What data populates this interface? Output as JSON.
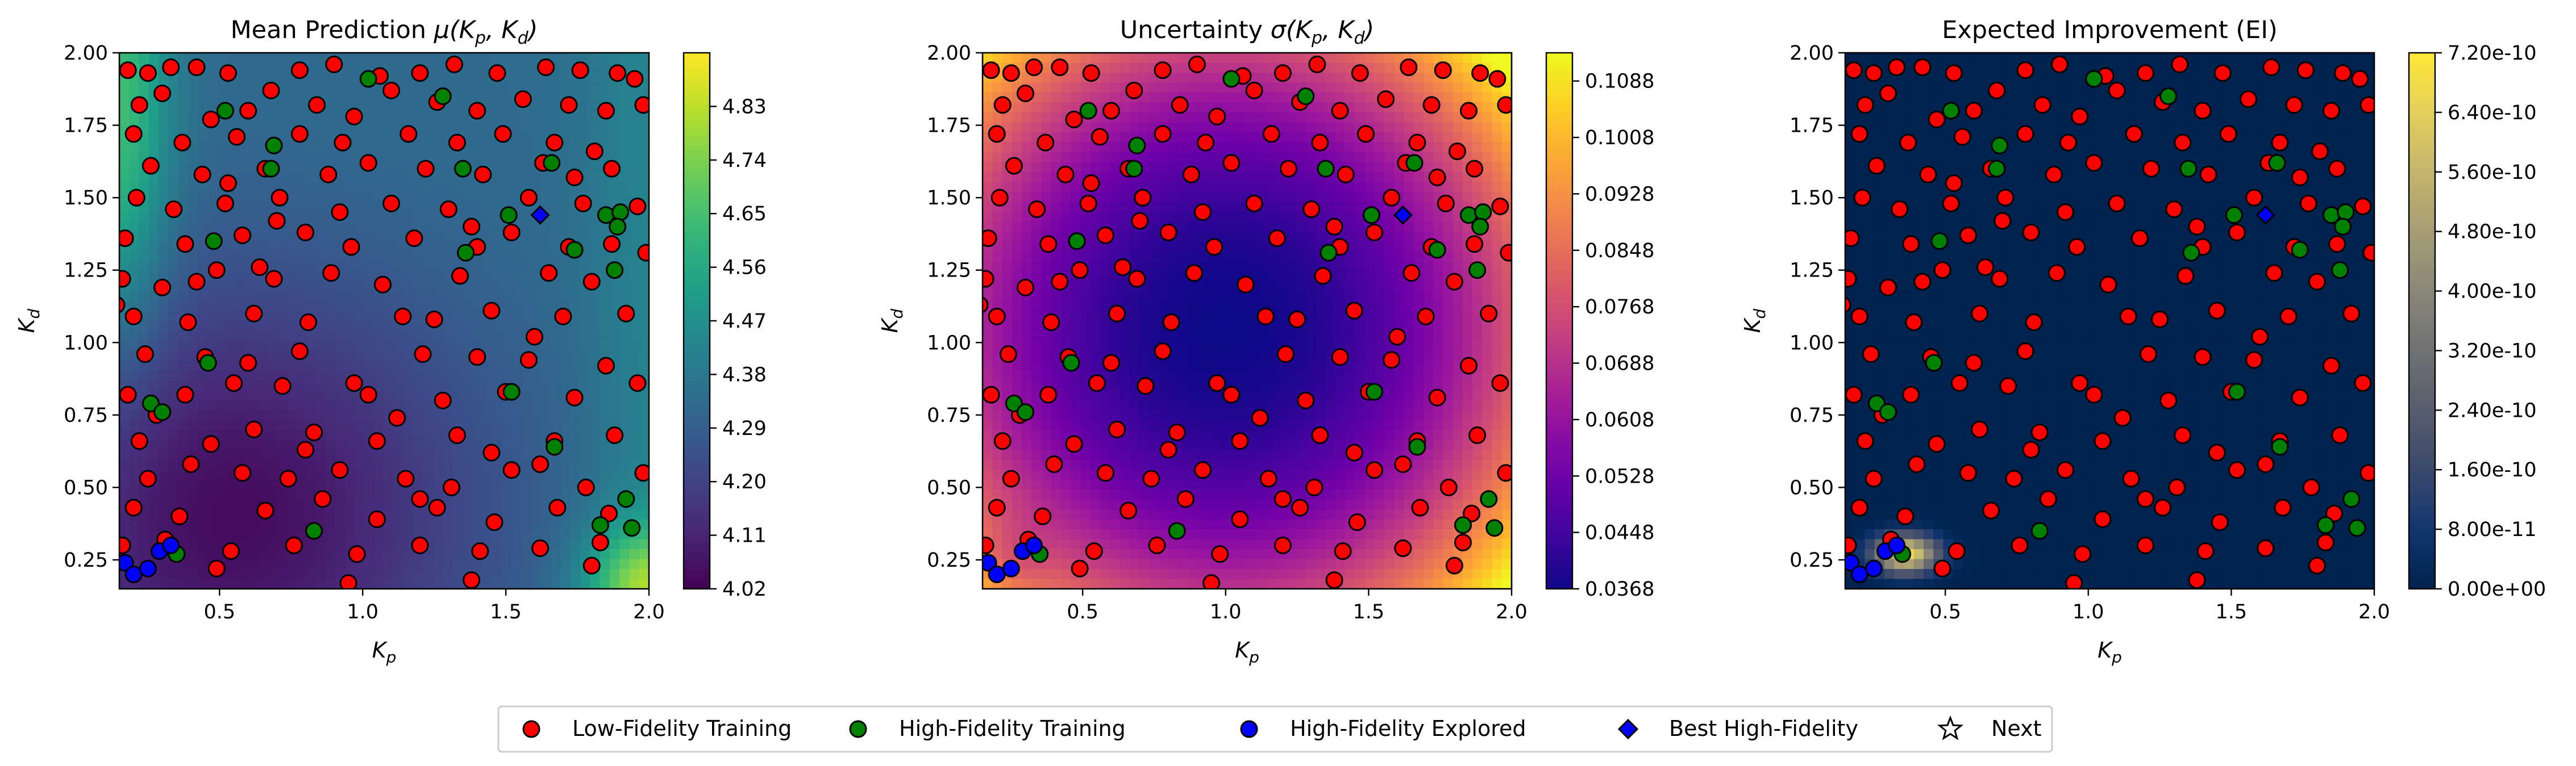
{
  "chart_data": [
    {
      "type": "heatmap",
      "title": "Mean Prediction μ(K_p, K_d)",
      "title_prefix": "Mean Prediction ",
      "title_math": [
        "μ(K",
        "p",
        ", K",
        "d",
        ")"
      ],
      "xlabel": "K_p",
      "ylabel": "K_d",
      "xlim": [
        0.15,
        2.0
      ],
      "ylim": [
        0.15,
        2.0
      ],
      "x_ticks": [
        "0.5",
        "1.0",
        "1.5",
        "2.0"
      ],
      "y_ticks": [
        "0.25",
        "0.50",
        "0.75",
        "1.00",
        "1.25",
        "1.50",
        "1.75",
        "2.00"
      ],
      "colormap": "viridis",
      "colorbar_range": [
        4.02,
        4.92
      ],
      "colorbar_ticks": [
        "4.02",
        "4.11",
        "4.20",
        "4.29",
        "4.38",
        "4.47",
        "4.56",
        "4.65",
        "4.74",
        "4.83"
      ],
      "minimum_region": [
        0.55,
        0.4
      ]
    },
    {
      "type": "heatmap",
      "title": "Uncertainty σ(K_p, K_d)",
      "title_prefix": "Uncertainty ",
      "title_math": [
        "σ(K",
        "p",
        ", K",
        "d",
        ")"
      ],
      "xlabel": "K_p",
      "ylabel": "K_d",
      "xlim": [
        0.15,
        2.0
      ],
      "ylim": [
        0.15,
        2.0
      ],
      "x_ticks": [
        "0.5",
        "1.0",
        "1.5",
        "2.0"
      ],
      "y_ticks": [
        "0.25",
        "0.50",
        "0.75",
        "1.00",
        "1.25",
        "1.50",
        "1.75",
        "2.00"
      ],
      "colormap": "plasma",
      "colorbar_range": [
        0.0368,
        0.1128
      ],
      "colorbar_ticks": [
        "0.0368",
        "0.0448",
        "0.0528",
        "0.0608",
        "0.0688",
        "0.0768",
        "0.0848",
        "0.0928",
        "0.1008",
        "0.1088"
      ]
    },
    {
      "type": "heatmap",
      "title": "Expected Improvement (EI)",
      "title_prefix": "Expected Improvement (EI)",
      "title_math": [],
      "xlabel": "K_p",
      "ylabel": "K_d",
      "xlim": [
        0.15,
        2.0
      ],
      "ylim": [
        0.15,
        2.0
      ],
      "x_ticks": [
        "0.5",
        "1.0",
        "1.5",
        "2.0"
      ],
      "y_ticks": [
        "0.25",
        "0.50",
        "0.75",
        "1.00",
        "1.25",
        "1.50",
        "1.75",
        "2.00"
      ],
      "colormap": "cividis",
      "colorbar_range": [
        0,
        7.2e-10
      ],
      "colorbar_ticks": [
        "0.00e+00",
        "8.00e-11",
        "1.60e-10",
        "2.40e-10",
        "3.20e-10",
        "4.00e-10",
        "4.80e-10",
        "5.60e-10",
        "6.40e-10",
        "7.20e-10"
      ],
      "peak_region": [
        0.35,
        0.27
      ]
    }
  ],
  "series": [
    {
      "key": "low",
      "label": "Low-Fidelity Training",
      "marker": "circle",
      "color": "#ff0000",
      "points": [
        [
          0.18,
          1.94
        ],
        [
          0.25,
          1.93
        ],
        [
          0.33,
          1.95
        ],
        [
          0.42,
          1.95
        ],
        [
          0.53,
          1.93
        ],
        [
          0.78,
          1.94
        ],
        [
          0.9,
          1.96
        ],
        [
          1.06,
          1.92
        ],
        [
          1.2,
          1.93
        ],
        [
          1.32,
          1.96
        ],
        [
          1.47,
          1.93
        ],
        [
          1.64,
          1.95
        ],
        [
          1.76,
          1.94
        ],
        [
          1.89,
          1.93
        ],
        [
          1.95,
          1.91
        ],
        [
          0.22,
          1.82
        ],
        [
          0.3,
          1.86
        ],
        [
          0.47,
          1.77
        ],
        [
          0.6,
          1.8
        ],
        [
          0.68,
          1.87
        ],
        [
          0.84,
          1.82
        ],
        [
          0.97,
          1.78
        ],
        [
          1.1,
          1.87
        ],
        [
          1.26,
          1.83
        ],
        [
          1.4,
          1.8
        ],
        [
          1.56,
          1.84
        ],
        [
          1.72,
          1.82
        ],
        [
          1.85,
          1.8
        ],
        [
          1.98,
          1.82
        ],
        [
          0.2,
          1.72
        ],
        [
          0.37,
          1.69
        ],
        [
          0.56,
          1.71
        ],
        [
          0.78,
          1.72
        ],
        [
          0.93,
          1.69
        ],
        [
          1.16,
          1.72
        ],
        [
          1.33,
          1.69
        ],
        [
          1.49,
          1.72
        ],
        [
          1.67,
          1.69
        ],
        [
          1.81,
          1.66
        ],
        [
          0.26,
          1.61
        ],
        [
          0.44,
          1.58
        ],
        [
          0.66,
          1.6
        ],
        [
          0.88,
          1.58
        ],
        [
          1.02,
          1.62
        ],
        [
          1.22,
          1.6
        ],
        [
          1.42,
          1.58
        ],
        [
          1.63,
          1.62
        ],
        [
          1.74,
          1.57
        ],
        [
          0.21,
          1.5
        ],
        [
          0.34,
          1.46
        ],
        [
          0.52,
          1.48
        ],
        [
          0.71,
          1.5
        ],
        [
          0.92,
          1.45
        ],
        [
          1.1,
          1.48
        ],
        [
          1.3,
          1.46
        ],
        [
          1.58,
          1.5
        ],
        [
          1.77,
          1.48
        ],
        [
          1.96,
          1.47
        ],
        [
          0.17,
          1.36
        ],
        [
          0.38,
          1.34
        ],
        [
          0.58,
          1.37
        ],
        [
          0.8,
          1.38
        ],
        [
          0.96,
          1.33
        ],
        [
          1.18,
          1.36
        ],
        [
          1.4,
          1.33
        ],
        [
          1.52,
          1.38
        ],
        [
          1.87,
          1.34
        ],
        [
          1.99,
          1.31
        ],
        [
          0.16,
          1.22
        ],
        [
          0.3,
          1.19
        ],
        [
          0.49,
          1.25
        ],
        [
          0.69,
          1.22
        ],
        [
          0.89,
          1.24
        ],
        [
          1.07,
          1.2
        ],
        [
          1.34,
          1.23
        ],
        [
          1.65,
          1.24
        ],
        [
          1.8,
          1.21
        ],
        [
          0.2,
          1.09
        ],
        [
          0.39,
          1.07
        ],
        [
          0.62,
          1.1
        ],
        [
          0.81,
          1.07
        ],
        [
          1.14,
          1.09
        ],
        [
          1.25,
          1.08
        ],
        [
          1.45,
          1.11
        ],
        [
          1.7,
          1.09
        ],
        [
          1.92,
          1.1
        ],
        [
          0.24,
          0.96
        ],
        [
          0.45,
          0.95
        ],
        [
          0.6,
          0.93
        ],
        [
          0.78,
          0.97
        ],
        [
          0.97,
          0.86
        ],
        [
          1.21,
          0.96
        ],
        [
          1.4,
          0.95
        ],
        [
          1.58,
          0.94
        ],
        [
          1.85,
          0.92
        ],
        [
          0.18,
          0.82
        ],
        [
          0.38,
          0.82
        ],
        [
          0.55,
          0.86
        ],
        [
          0.72,
          0.85
        ],
        [
          1.02,
          0.82
        ],
        [
          1.28,
          0.8
        ],
        [
          1.5,
          0.83
        ],
        [
          1.74,
          0.81
        ],
        [
          1.96,
          0.86
        ],
        [
          0.22,
          0.66
        ],
        [
          0.47,
          0.65
        ],
        [
          0.62,
          0.7
        ],
        [
          0.83,
          0.69
        ],
        [
          1.05,
          0.66
        ],
        [
          1.33,
          0.68
        ],
        [
          1.45,
          0.62
        ],
        [
          1.67,
          0.66
        ],
        [
          1.88,
          0.68
        ],
        [
          0.25,
          0.53
        ],
        [
          0.4,
          0.58
        ],
        [
          0.58,
          0.55
        ],
        [
          0.74,
          0.53
        ],
        [
          0.92,
          0.56
        ],
        [
          1.15,
          0.53
        ],
        [
          1.31,
          0.5
        ],
        [
          1.52,
          0.56
        ],
        [
          1.78,
          0.5
        ],
        [
          1.98,
          0.55
        ],
        [
          0.2,
          0.43
        ],
        [
          0.36,
          0.4
        ],
        [
          0.66,
          0.42
        ],
        [
          0.86,
          0.46
        ],
        [
          1.05,
          0.39
        ],
        [
          1.26,
          0.43
        ],
        [
          1.46,
          0.38
        ],
        [
          1.68,
          0.43
        ],
        [
          1.86,
          0.41
        ],
        [
          0.16,
          0.3
        ],
        [
          0.31,
          0.32
        ],
        [
          0.54,
          0.28
        ],
        [
          0.76,
          0.3
        ],
        [
          0.98,
          0.27
        ],
        [
          1.2,
          0.3
        ],
        [
          1.41,
          0.28
        ],
        [
          1.62,
          0.29
        ],
        [
          1.83,
          0.31
        ],
        [
          0.49,
          0.22
        ],
        [
          0.95,
          0.17
        ],
        [
          1.38,
          0.18
        ],
        [
          1.8,
          0.23
        ],
        [
          0.8,
          0.63
        ],
        [
          1.12,
          0.74
        ],
        [
          1.62,
          0.58
        ],
        [
          0.14,
          1.13
        ],
        [
          1.6,
          1.02
        ],
        [
          0.64,
          1.26
        ],
        [
          1.38,
          1.4
        ],
        [
          0.42,
          1.21
        ],
        [
          0.7,
          1.42
        ],
        [
          1.87,
          1.6
        ],
        [
          0.53,
          1.55
        ],
        [
          1.2,
          0.46
        ],
        [
          0.28,
          0.75
        ],
        [
          1.72,
          1.33
        ]
      ]
    },
    {
      "key": "high",
      "label": "High-Fidelity Training",
      "marker": "circle",
      "color": "#008000",
      "points": [
        [
          0.52,
          1.8
        ],
        [
          0.69,
          1.68
        ],
        [
          1.02,
          1.91
        ],
        [
          1.28,
          1.85
        ],
        [
          1.35,
          1.6
        ],
        [
          1.51,
          1.44
        ],
        [
          1.66,
          1.62
        ],
        [
          1.85,
          1.44
        ],
        [
          1.9,
          1.45
        ],
        [
          1.89,
          1.4
        ],
        [
          0.48,
          1.35
        ],
        [
          1.36,
          1.31
        ],
        [
          1.74,
          1.32
        ],
        [
          0.46,
          0.93
        ],
        [
          1.52,
          0.83
        ],
        [
          0.26,
          0.79
        ],
        [
          0.3,
          0.76
        ],
        [
          1.67,
          0.64
        ],
        [
          1.92,
          0.46
        ],
        [
          1.83,
          0.37
        ],
        [
          1.94,
          0.36
        ],
        [
          0.83,
          0.35
        ],
        [
          0.35,
          0.27
        ],
        [
          0.68,
          1.6
        ],
        [
          1.88,
          1.25
        ]
      ]
    },
    {
      "key": "explored",
      "label": "High-Fidelity Explored",
      "marker": "circle",
      "color": "#0000ff",
      "points": [
        [
          0.17,
          0.24
        ],
        [
          0.2,
          0.2
        ],
        [
          0.25,
          0.22
        ],
        [
          0.29,
          0.28
        ],
        [
          0.33,
          0.3
        ]
      ]
    },
    {
      "key": "best",
      "label": "Best High-Fidelity",
      "marker": "diamond",
      "color": "#0000ff",
      "points": [
        [
          1.62,
          1.44
        ]
      ]
    },
    {
      "key": "next",
      "label": "Next",
      "marker": "star",
      "color": "none",
      "points": []
    }
  ]
}
